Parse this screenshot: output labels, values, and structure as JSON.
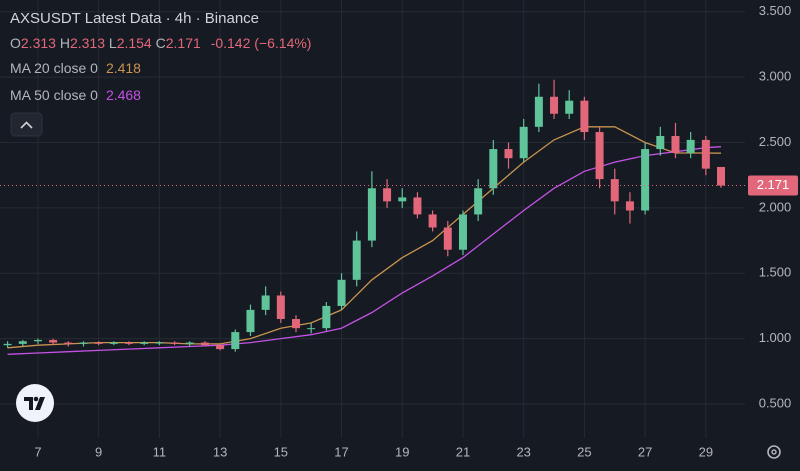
{
  "chart_data": {
    "type": "candlestick",
    "title": "AXSUSDT Latest Data · 4h · Binance",
    "ohlc_labels": [
      "O",
      "H",
      "L",
      "C"
    ],
    "ohlc_values": [
      2.313,
      2.313,
      2.154,
      2.171
    ],
    "change_text": "-0.142 (−6.14%)",
    "up_color": "#5fc49a",
    "down_color": "#e3677a",
    "x": [
      6,
      6.5,
      7,
      7.5,
      8,
      8.5,
      9,
      9.5,
      10,
      10.5,
      11,
      11.5,
      12,
      12.5,
      13,
      13.5,
      14,
      14.5,
      15,
      15.5,
      16,
      16.5,
      17,
      17.5,
      18,
      18.5,
      19,
      19.5,
      20,
      20.5,
      21,
      21.5,
      22,
      22.5,
      23,
      23.5,
      24,
      24.5,
      25,
      25.5,
      26,
      26.5,
      27,
      27.5,
      28,
      28.5,
      29,
      29.5
    ],
    "open": [
      0.95,
      0.96,
      0.98,
      0.99,
      0.97,
      0.96,
      0.97,
      0.96,
      0.97,
      0.96,
      0.97,
      0.97,
      0.96,
      0.97,
      0.95,
      0.92,
      1.05,
      1.22,
      1.33,
      1.15,
      1.08,
      1.08,
      1.25,
      1.45,
      1.75,
      2.15,
      2.05,
      2.08,
      1.95,
      1.85,
      1.68,
      1.95,
      2.15,
      2.45,
      2.38,
      2.62,
      2.85,
      2.72,
      2.82,
      2.58,
      2.22,
      2.05,
      1.98,
      2.45,
      2.55,
      2.42,
      2.52,
      2.313
    ],
    "high": [
      0.98,
      0.99,
      1.0,
      1.0,
      0.98,
      0.98,
      0.98,
      0.98,
      0.98,
      0.98,
      0.98,
      0.98,
      0.98,
      0.98,
      0.96,
      1.07,
      1.26,
      1.4,
      1.36,
      1.18,
      1.12,
      1.28,
      1.5,
      1.82,
      2.28,
      2.22,
      2.15,
      2.12,
      1.98,
      1.9,
      1.98,
      2.22,
      2.52,
      2.5,
      2.68,
      2.95,
      2.98,
      2.9,
      2.85,
      2.62,
      2.3,
      2.12,
      2.5,
      2.62,
      2.65,
      2.58,
      2.55,
      2.313
    ],
    "low": [
      0.93,
      0.94,
      0.96,
      0.95,
      0.94,
      0.94,
      0.95,
      0.95,
      0.95,
      0.95,
      0.95,
      0.95,
      0.94,
      0.94,
      0.91,
      0.9,
      1.02,
      1.18,
      1.12,
      1.05,
      1.04,
      1.06,
      1.22,
      1.4,
      1.7,
      2.0,
      2.0,
      1.92,
      1.82,
      1.63,
      1.64,
      1.9,
      2.1,
      2.3,
      2.35,
      2.58,
      2.68,
      2.68,
      2.52,
      2.15,
      1.95,
      1.88,
      1.95,
      2.4,
      2.38,
      2.38,
      2.25,
      2.154
    ],
    "close": [
      0.96,
      0.98,
      0.99,
      0.97,
      0.96,
      0.97,
      0.96,
      0.97,
      0.96,
      0.97,
      0.97,
      0.96,
      0.97,
      0.95,
      0.92,
      1.05,
      1.22,
      1.33,
      1.15,
      1.08,
      1.08,
      1.25,
      1.45,
      1.75,
      2.15,
      2.05,
      2.08,
      1.95,
      1.85,
      1.68,
      1.95,
      2.15,
      2.45,
      2.38,
      2.62,
      2.85,
      2.72,
      2.82,
      2.58,
      2.22,
      2.05,
      1.98,
      2.45,
      2.55,
      2.42,
      2.52,
      2.3,
      2.171
    ],
    "lines": [
      {
        "name": "MA 20 close 0",
        "color": "#c8944f",
        "last_value": 2.418,
        "x": [
          6,
          7,
          8,
          9,
          10,
          11,
          12,
          13,
          14,
          15,
          16,
          17,
          18,
          19,
          20,
          21,
          22,
          23,
          24,
          25,
          26,
          27,
          28,
          29,
          29.5
        ],
        "values": [
          0.93,
          0.95,
          0.96,
          0.97,
          0.97,
          0.97,
          0.96,
          0.96,
          1.0,
          1.08,
          1.12,
          1.22,
          1.45,
          1.62,
          1.75,
          1.95,
          2.15,
          2.35,
          2.52,
          2.62,
          2.62,
          2.5,
          2.42,
          2.42,
          2.418
        ]
      },
      {
        "name": "MA 50 close 0",
        "color": "#c452e6",
        "last_value": 2.468,
        "x": [
          6,
          7,
          8,
          9,
          10,
          11,
          12,
          13,
          14,
          15,
          16,
          17,
          18,
          19,
          20,
          21,
          22,
          23,
          24,
          25,
          26,
          27,
          28,
          29,
          29.5
        ],
        "values": [
          0.88,
          0.89,
          0.9,
          0.91,
          0.92,
          0.93,
          0.94,
          0.95,
          0.97,
          1.0,
          1.03,
          1.08,
          1.2,
          1.35,
          1.48,
          1.62,
          1.8,
          1.98,
          2.15,
          2.28,
          2.35,
          2.4,
          2.43,
          2.46,
          2.468
        ]
      }
    ],
    "last_price": 2.171,
    "xlim": [
      5.75,
      30.29
    ],
    "xticks": [
      7,
      9,
      11,
      13,
      15,
      17,
      19,
      21,
      23,
      25,
      27,
      29
    ],
    "ylim": [
      0.24,
      3.59
    ],
    "yticks": [
      {
        "value": 0.5,
        "label": "0.500"
      },
      {
        "value": 1,
        "label": "1.000"
      },
      {
        "value": 1.5,
        "label": "1.500"
      },
      {
        "value": 2,
        "label": "2.000"
      },
      {
        "value": 2.5,
        "label": "2.500"
      },
      {
        "value": 3,
        "label": "3.000"
      },
      {
        "value": 3.5,
        "label": "3.500"
      }
    ],
    "grid": true
  }
}
